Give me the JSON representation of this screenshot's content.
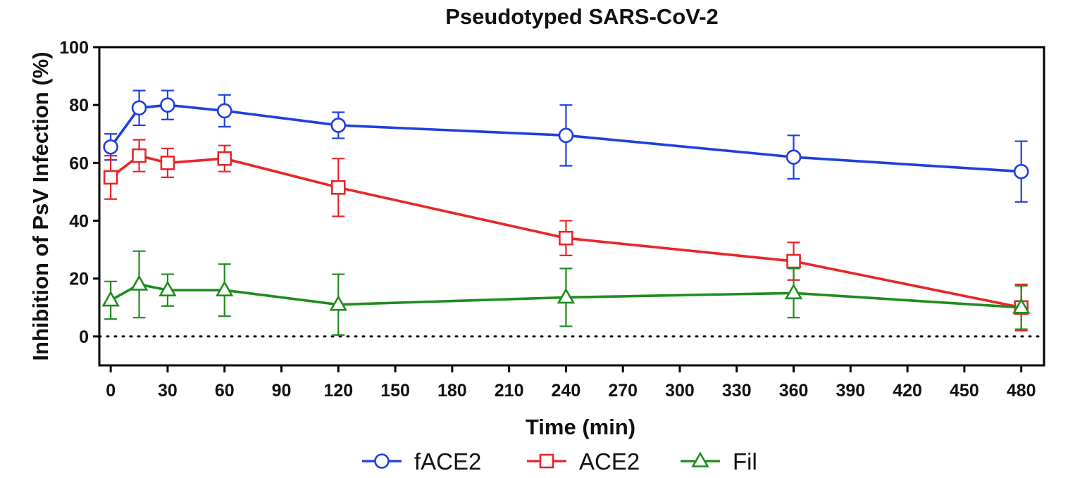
{
  "chart_data": {
    "type": "line",
    "title": "Pseudotyped SARS-CoV-2",
    "xlabel": "Time (min)",
    "ylabel": "Inhibition of PsV Infection (%)",
    "xlim": [
      -6,
      492
    ],
    "ylim": [
      -10,
      100
    ],
    "xticks": [
      0,
      30,
      60,
      90,
      120,
      150,
      180,
      210,
      240,
      270,
      300,
      330,
      360,
      390,
      420,
      450,
      480
    ],
    "yticks": [
      0,
      20,
      40,
      60,
      80,
      100
    ],
    "reference_line": {
      "y": 0,
      "style": "dotted"
    },
    "legend_position": "bottom-center",
    "series": [
      {
        "name": "fACE2",
        "color": "#1f3fe0",
        "marker": "circle",
        "x": [
          0,
          15,
          30,
          60,
          120,
          240,
          360,
          480
        ],
        "y": [
          65.5,
          79,
          80,
          78,
          73,
          69.5,
          62,
          57
        ],
        "error": [
          4.5,
          6,
          5,
          5.5,
          4.5,
          10.5,
          7.5,
          10.5
        ]
      },
      {
        "name": "ACE2",
        "color": "#e8252a",
        "marker": "square",
        "x": [
          0,
          15,
          30,
          60,
          120,
          240,
          360,
          480
        ],
        "y": [
          55,
          62.5,
          60,
          61.5,
          51.5,
          34,
          26,
          10
        ],
        "error": [
          7.5,
          5.5,
          5,
          4.5,
          10,
          6,
          6.5,
          8
        ]
      },
      {
        "name": "Fil",
        "color": "#1f8c1f",
        "marker": "triangle",
        "x": [
          0,
          15,
          30,
          60,
          120,
          240,
          360,
          480
        ],
        "y": [
          12.5,
          18,
          16,
          16,
          11,
          13.5,
          15,
          10
        ],
        "error": [
          6.5,
          11.5,
          5.5,
          9,
          10.5,
          10,
          8.5,
          7.5
        ]
      }
    ]
  }
}
